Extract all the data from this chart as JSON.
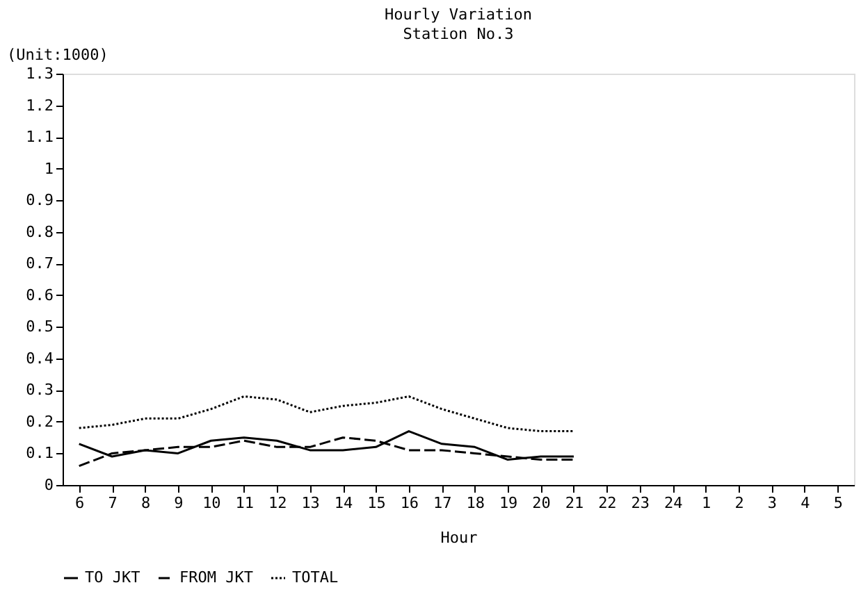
{
  "chart_data": {
    "type": "line",
    "title": "Hourly Variation",
    "subtitle": "Station No.3",
    "xlabel": "Hour",
    "annotations": [
      "(Unit:1000)"
    ],
    "categories": [
      "6",
      "7",
      "8",
      "9",
      "10",
      "11",
      "12",
      "13",
      "14",
      "15",
      "16",
      "17",
      "18",
      "19",
      "20",
      "21",
      "22",
      "23",
      "24",
      "1",
      "2",
      "3",
      "4",
      "5"
    ],
    "series": [
      {
        "name": "TO JKT",
        "color": "#000000",
        "line_style": "solid",
        "values": [
          0.13,
          0.09,
          0.11,
          0.1,
          0.14,
          0.15,
          0.14,
          0.11,
          0.11,
          0.12,
          0.17,
          0.13,
          0.12,
          0.08,
          0.09,
          0.09,
          null,
          null,
          null,
          null,
          null,
          null,
          null,
          null
        ]
      },
      {
        "name": "FROM JKT",
        "color": "#000000",
        "line_style": "dashed",
        "values": [
          0.06,
          0.1,
          0.11,
          0.12,
          0.12,
          0.14,
          0.12,
          0.12,
          0.15,
          0.14,
          0.11,
          0.11,
          0.1,
          0.09,
          0.08,
          0.08,
          null,
          null,
          null,
          null,
          null,
          null,
          null,
          null
        ]
      },
      {
        "name": "TOTAL",
        "color": "#000000",
        "line_style": "dotted",
        "values": [
          0.18,
          0.19,
          0.21,
          0.21,
          0.24,
          0.28,
          0.27,
          0.23,
          0.25,
          0.26,
          0.28,
          0.24,
          0.21,
          0.18,
          0.17,
          0.17,
          null,
          null,
          null,
          null,
          null,
          null,
          null,
          null
        ]
      }
    ],
    "ylim": [
      0,
      1.3
    ],
    "yticks": [
      0,
      0.1,
      0.2,
      0.3,
      0.4,
      0.5,
      0.6,
      0.7,
      0.8,
      0.9,
      1,
      1.1,
      1.2,
      1.3
    ],
    "grid": false,
    "legend": "bottom"
  }
}
